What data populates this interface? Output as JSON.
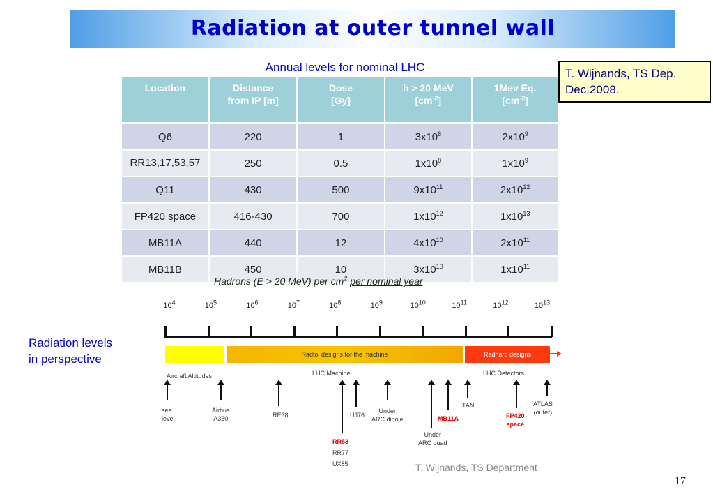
{
  "slide": {
    "title": "Radiation at outer tunnel wall",
    "caption": "Annual levels for nominal LHC",
    "reference": [
      "T. Wijnands, TS Dep.",
      "Dec.2008."
    ],
    "side_label": [
      "Radiation levels",
      "in perspective"
    ],
    "page_number": "17"
  },
  "table": {
    "headers": [
      [
        "Location"
      ],
      [
        "Distance",
        "from IP [m]"
      ],
      [
        "Dose",
        "[Gy]"
      ],
      [
        "h > 20 MeV",
        "[cm-2]"
      ],
      [
        "1Mev Eq.",
        "[cm-2]"
      ]
    ],
    "rows": [
      {
        "location": "Q6",
        "distance": "220",
        "dose": "1",
        "h20_base": "3x10",
        "h20_exp": "8",
        "eq_base": "2x10",
        "eq_exp": "9"
      },
      {
        "location": "RR13,17,53,57",
        "distance": "250",
        "dose": "0.5",
        "h20_base": "1x10",
        "h20_exp": "8",
        "eq_base": "1x10",
        "eq_exp": "9"
      },
      {
        "location": "Q11",
        "distance": "430",
        "dose": "500",
        "h20_base": "9x10",
        "h20_exp": "11",
        "eq_base": "2x10",
        "eq_exp": "12"
      },
      {
        "location": "FP420 space",
        "distance": "416-430",
        "dose": "700",
        "h20_base": "1x10",
        "h20_exp": "12",
        "eq_base": "1x10",
        "eq_exp": "13"
      },
      {
        "location": "MB11A",
        "distance": "440",
        "dose": "12",
        "h20_base": "4x10",
        "h20_exp": "10",
        "eq_base": "2x10",
        "eq_exp": "11"
      },
      {
        "location": "MB11B",
        "distance": "450",
        "dose": "10",
        "h20_base": "3x10",
        "h20_exp": "10",
        "eq_base": "1x10",
        "eq_exp": "11"
      }
    ]
  },
  "perspective": {
    "title_plain": "Hadrons (E > 20 MeV) per cm",
    "title_sup": "2",
    "title_underlined": "per nominal year",
    "ticks": [
      {
        "base": "10",
        "exp": "4"
      },
      {
        "base": "10",
        "exp": "5"
      },
      {
        "base": "10",
        "exp": "6"
      },
      {
        "base": "10",
        "exp": "7"
      },
      {
        "base": "10",
        "exp": "8"
      },
      {
        "base": "10",
        "exp": "9"
      },
      {
        "base": "10",
        "exp": "10"
      },
      {
        "base": "10",
        "exp": "11"
      },
      {
        "base": "10",
        "exp": "12"
      },
      {
        "base": "10",
        "exp": "13"
      }
    ],
    "bands": {
      "middle": "Radtol designs for the machine",
      "right": "Radhard designs",
      "colors": {
        "yellow": "#ffff00",
        "orange": "#f5b800",
        "red": "#ff3300"
      }
    },
    "group_labels": {
      "aircraft": "Aircraft Altitudes",
      "lhc_machine": "LHC Machine",
      "lhc_detectors": "LHC Detectors"
    },
    "markers": {
      "sea_level": [
        "sea",
        "level"
      ],
      "airbus": [
        "Airbus",
        "A330"
      ],
      "re38": "RE38",
      "rr_list": [
        "RR53",
        "RR77",
        "UX85"
      ],
      "uj76": "UJ76",
      "arc_dipole": [
        "Under",
        "ARC dipole"
      ],
      "arc_quad": [
        "Under",
        "ARC quad"
      ],
      "mb11a": "MB11A",
      "tan": "TAN",
      "fp420": [
        "FP420",
        "space"
      ],
      "atlas": [
        "ATLAS",
        "(outer)"
      ]
    },
    "credit": "T. Wijnands, TS Department"
  }
}
